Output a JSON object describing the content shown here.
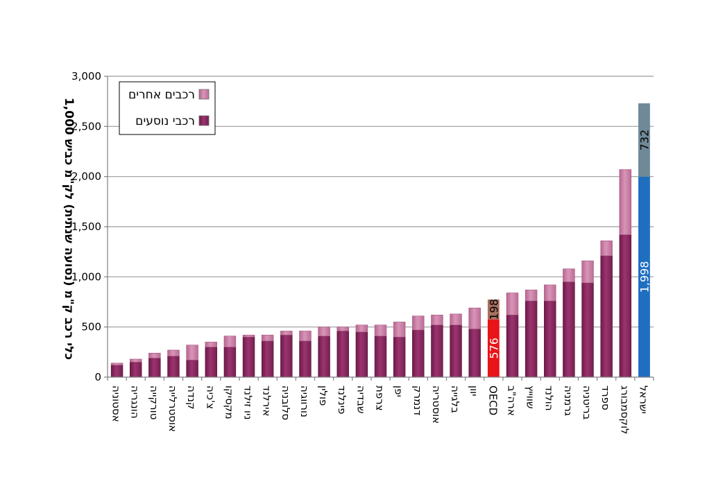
{
  "chart_data": {
    "type": "bar",
    "stacked": true,
    "ylabel": "1,000 כלי רכב ק\"מ (נסועה שנתית) לק\"מ כביש",
    "ylim": [
      0,
      3000
    ],
    "yticks": [
      "0",
      "500",
      "1,000",
      "1,500",
      "2,000",
      "2,500",
      "3,000"
    ],
    "ytick_values": [
      0,
      500,
      1000,
      1500,
      2000,
      2500,
      3000
    ],
    "grid": true,
    "legend_position": "top-left",
    "categories": [
      "אסטוניה",
      "הונגריה",
      "טורקייה",
      "אוסטרלייה",
      "קנדה",
      "צ'כיה",
      "מקסיקו",
      "ניו זילנד",
      "אירלנד",
      "סלובניה",
      "נורווגיה",
      "פולין",
      "פינלנד",
      "שבדיה",
      "צרפת",
      "יפן",
      "דנמרק",
      "אוסטריה",
      "בלגייה",
      "יוון",
      "OECD",
      "ארה\"ב",
      "שווייץ",
      "הולנד",
      "גרמניה",
      "בריטניה",
      "ספרד",
      "לוקסמבורג",
      "ישראל"
    ],
    "series": [
      {
        "name": "רכבי נוסעים",
        "color": "#8e2a62",
        "values": [
          120,
          150,
          190,
          210,
          170,
          300,
          300,
          400,
          360,
          420,
          360,
          410,
          460,
          450,
          410,
          400,
          470,
          520,
          520,
          480,
          576,
          620,
          760,
          760,
          950,
          940,
          1210,
          1420,
          1998
        ]
      },
      {
        "name": "רכבים אחרים",
        "color": "#c77aa2",
        "values": [
          20,
          30,
          50,
          60,
          150,
          50,
          110,
          20,
          60,
          40,
          100,
          90,
          40,
          70,
          110,
          150,
          140,
          100,
          110,
          210,
          198,
          220,
          110,
          160,
          130,
          220,
          150,
          650,
          732
        ]
      }
    ],
    "highlight_colors": {
      "OECD": [
        "#e8141a",
        "#a87060"
      ],
      "ישראל": [
        "#1f6fc1",
        "#6f8999"
      ]
    },
    "data_labels": [
      {
        "category": "OECD",
        "series": 0,
        "text": "576",
        "color": "#ffffff"
      },
      {
        "category": "OECD",
        "series": 1,
        "text": "198",
        "color": "#000000"
      },
      {
        "category": "ישראל",
        "series": 0,
        "text": "1,998",
        "color": "#ffffff"
      },
      {
        "category": "ישראל",
        "series": 1,
        "text": "732",
        "color": "#000000"
      }
    ]
  },
  "colors": {
    "gridline": "#9a9a9a",
    "axis": "#7f7f7f"
  }
}
